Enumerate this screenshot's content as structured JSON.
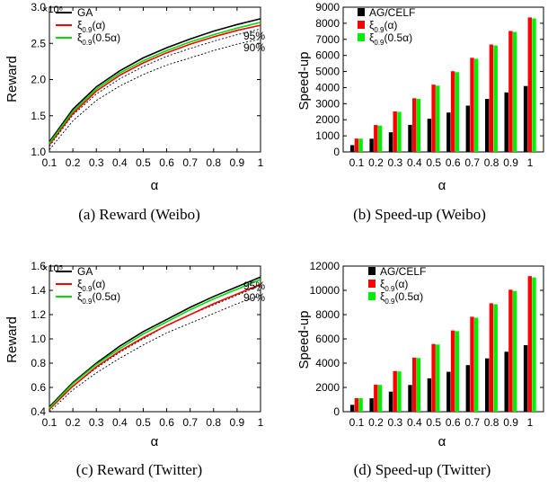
{
  "chart_data": [
    {
      "id": "a",
      "type": "line",
      "caption": "(a) Reward (Weibo)",
      "xlabel": "α",
      "ylabel": "Reward",
      "axis_exponent": "×10⁶",
      "xlim": [
        0.1,
        1.0
      ],
      "ylim": [
        1.0,
        3.0
      ],
      "x_ticks": [
        0.1,
        0.2,
        0.3,
        0.4,
        0.5,
        0.6,
        0.7,
        0.8,
        0.9,
        1.0
      ],
      "y_ticks": [
        1.0,
        1.5,
        2.0,
        2.5,
        3.0
      ],
      "x_tick_labels": [
        "0.1",
        "0.2",
        "0.3",
        "0.4",
        "0.5",
        "0.6",
        "0.7",
        "0.8",
        "0.9",
        "1"
      ],
      "y_tick_labels": [
        "1.0",
        "1.5",
        "2.0",
        "2.5",
        "3.0"
      ],
      "x": [
        0.1,
        0.2,
        0.3,
        0.4,
        0.5,
        0.6,
        0.7,
        0.8,
        0.9,
        1.0
      ],
      "series": [
        {
          "name": "GA",
          "color": "#000000",
          "dash": "",
          "values": [
            1.14,
            1.59,
            1.9,
            2.12,
            2.3,
            2.44,
            2.56,
            2.67,
            2.76,
            2.84
          ]
        },
        {
          "name": "ξ0.9(α)",
          "color": "#ff0000",
          "dash": "",
          "values": [
            1.1,
            1.53,
            1.84,
            2.06,
            2.23,
            2.37,
            2.49,
            2.59,
            2.68,
            2.75
          ]
        },
        {
          "name": "ξ0.9(0.5α)",
          "color": "#00dd00",
          "dash": "",
          "values": [
            1.12,
            1.56,
            1.87,
            2.09,
            2.26,
            2.4,
            2.52,
            2.62,
            2.71,
            2.79
          ]
        },
        {
          "name": "95%",
          "color": "#000000",
          "dash": "2,2",
          "values": [
            1.08,
            1.51,
            1.8,
            2.01,
            2.18,
            2.32,
            2.43,
            2.53,
            2.62,
            2.7
          ]
        },
        {
          "name": "90%",
          "color": "#000000",
          "dash": "2,2",
          "values": [
            1.03,
            1.43,
            1.71,
            1.91,
            2.07,
            2.2,
            2.3,
            2.4,
            2.49,
            2.56
          ]
        }
      ],
      "legend": [
        {
          "text": "GA",
          "color": "#000000"
        },
        {
          "text": "ξ",
          "sub": "0.9",
          "rest": "(α)",
          "color": "#ff0000"
        },
        {
          "text": "ξ",
          "sub": "0.9",
          "rest": "(0.5α)",
          "color": "#00dd00"
        }
      ],
      "band_labels": [
        "95%",
        "90%"
      ],
      "legend_position": "top-left",
      "grid": false
    },
    {
      "id": "b",
      "type": "bar",
      "caption": "(b) Speed-up (Weibo)",
      "xlabel": "α",
      "ylabel": "Speed-up",
      "categories": [
        "0.1",
        "0.2",
        "0.3",
        "0.4",
        "0.5",
        "0.6",
        "0.7",
        "0.8",
        "0.9",
        "1"
      ],
      "ylim": [
        0,
        9000
      ],
      "y_ticks": [
        0,
        1000,
        2000,
        3000,
        4000,
        5000,
        6000,
        7000,
        8000,
        9000
      ],
      "y_tick_labels": [
        "0",
        "1000",
        "2000",
        "3000",
        "4000",
        "5000",
        "6000",
        "7000",
        "8000",
        "9000"
      ],
      "series": [
        {
          "name": "AG/CELF",
          "color": "#000000",
          "values": [
            420,
            820,
            1220,
            1680,
            2060,
            2450,
            2880,
            3300,
            3700,
            4100
          ]
        },
        {
          "name": "ξ0.9(α)",
          "color": "#ff0000",
          "values": [
            830,
            1670,
            2520,
            3340,
            4180,
            5020,
            5850,
            6680,
            7520,
            8360
          ]
        },
        {
          "name": "ξ0.9(0.5α)",
          "color": "#00ee00",
          "values": [
            820,
            1640,
            2490,
            3300,
            4120,
            4960,
            5790,
            6620,
            7460,
            8300
          ]
        }
      ],
      "legend": [
        {
          "text": "AG/CELF",
          "color": "#000000"
        },
        {
          "text": "ξ",
          "sub": "0.9",
          "rest": "(α)",
          "color": "#ff0000"
        },
        {
          "text": "ξ",
          "sub": "0.9",
          "rest": "(0.5α)",
          "color": "#00ee00"
        }
      ],
      "legend_position": "top-left",
      "grid": false
    },
    {
      "id": "c",
      "type": "line",
      "caption": "(c) Reward (Twitter)",
      "xlabel": "α",
      "ylabel": "Reward",
      "axis_exponent": "×10⁵",
      "xlim": [
        0.1,
        1.0
      ],
      "ylim": [
        0.4,
        1.6
      ],
      "x_ticks": [
        0.1,
        0.2,
        0.3,
        0.4,
        0.5,
        0.6,
        0.7,
        0.8,
        0.9,
        1.0
      ],
      "y_ticks": [
        0.4,
        0.6,
        0.8,
        1.0,
        1.2,
        1.4,
        1.6
      ],
      "x_tick_labels": [
        "0.1",
        "0.2",
        "0.3",
        "0.4",
        "0.5",
        "0.6",
        "0.7",
        "0.8",
        "0.9",
        "1"
      ],
      "y_tick_labels": [
        "0.4",
        "0.6",
        "0.8",
        "1.0",
        "1.2",
        "1.4",
        "1.6"
      ],
      "x": [
        0.1,
        0.2,
        0.3,
        0.4,
        0.5,
        0.6,
        0.7,
        0.8,
        0.9,
        1.0
      ],
      "series": [
        {
          "name": "GA",
          "color": "#000000",
          "dash": "",
          "values": [
            0.44,
            0.64,
            0.8,
            0.94,
            1.06,
            1.16,
            1.26,
            1.35,
            1.43,
            1.51
          ]
        },
        {
          "name": "ξ0.9(α)",
          "color": "#ff0000",
          "dash": "",
          "values": [
            0.42,
            0.61,
            0.77,
            0.9,
            1.01,
            1.11,
            1.2,
            1.29,
            1.37,
            1.45
          ]
        },
        {
          "name": "ξ0.9(0.5α)",
          "color": "#00dd00",
          "dash": "",
          "values": [
            0.43,
            0.63,
            0.79,
            0.92,
            1.04,
            1.14,
            1.24,
            1.33,
            1.41,
            1.49
          ]
        },
        {
          "name": "95%",
          "color": "#000000",
          "dash": "2,2",
          "values": [
            0.42,
            0.61,
            0.76,
            0.89,
            1.0,
            1.11,
            1.2,
            1.28,
            1.36,
            1.44
          ]
        },
        {
          "name": "90%",
          "color": "#000000",
          "dash": "2,2",
          "values": [
            0.4,
            0.58,
            0.72,
            0.84,
            0.95,
            1.05,
            1.13,
            1.21,
            1.29,
            1.36
          ]
        }
      ],
      "legend": [
        {
          "text": "GA",
          "color": "#000000"
        },
        {
          "text": "ξ",
          "sub": "0.9",
          "rest": "(α)",
          "color": "#ff0000"
        },
        {
          "text": "ξ",
          "sub": "0.9",
          "rest": "(0.5α)",
          "color": "#00dd00"
        }
      ],
      "band_labels": [
        "95%",
        "90%"
      ],
      "legend_position": "top-left",
      "grid": false
    },
    {
      "id": "d",
      "type": "bar",
      "caption": "(d) Speed-up (Twitter)",
      "xlabel": "α",
      "ylabel": "Speed-up",
      "categories": [
        "0.1",
        "0.2",
        "0.3",
        "0.4",
        "0.5",
        "0.6",
        "0.7",
        "0.8",
        "0.9",
        "1"
      ],
      "ylim": [
        0,
        12000
      ],
      "y_ticks": [
        0,
        2000,
        4000,
        6000,
        8000,
        10000,
        12000
      ],
      "y_tick_labels": [
        "0",
        "2000",
        "4000",
        "6000",
        "8000",
        "10000",
        "12000"
      ],
      "series": [
        {
          "name": "AG/CELF",
          "color": "#000000",
          "values": [
            560,
            1100,
            1650,
            2200,
            2750,
            3290,
            3840,
            4390,
            4940,
            5480
          ]
        },
        {
          "name": "ξ0.9(α)",
          "color": "#ff0000",
          "values": [
            1120,
            2230,
            3350,
            4460,
            5580,
            6700,
            7820,
            8930,
            10050,
            11170
          ]
        },
        {
          "name": "ξ0.9(0.5α)",
          "color": "#00ee00",
          "values": [
            1110,
            2210,
            3320,
            4420,
            5530,
            6640,
            7740,
            8850,
            9950,
            11060
          ]
        }
      ],
      "legend": [
        {
          "text": "AG/CELF",
          "color": "#000000"
        },
        {
          "text": "ξ",
          "sub": "0.9",
          "rest": "(α)",
          "color": "#ff0000"
        },
        {
          "text": "ξ",
          "sub": "0.9",
          "rest": "(0.5α)",
          "color": "#00ee00"
        }
      ],
      "legend_position": "top-left",
      "grid": false
    }
  ]
}
